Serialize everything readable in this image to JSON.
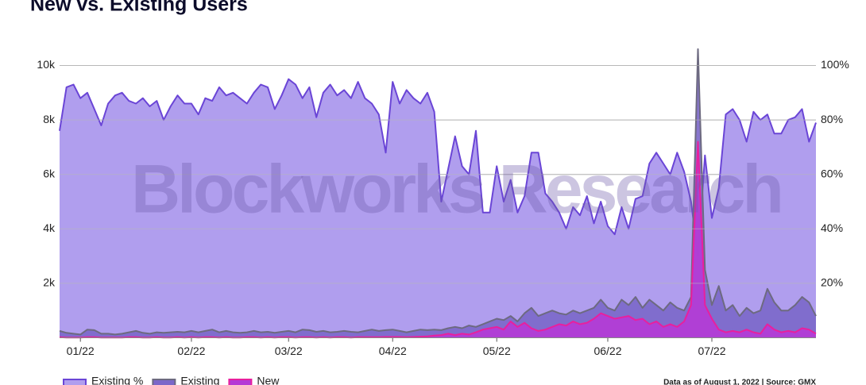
{
  "chart_data": {
    "type": "area",
    "title": "New vs. Existing Users",
    "watermark": "Blockworks Research",
    "source": "Data as of August 1, 2022 | Source: GMX",
    "categories": [
      null,
      null,
      null,
      "01/22",
      null,
      null,
      null,
      null,
      null,
      null,
      null,
      null,
      null,
      null,
      null,
      null,
      null,
      null,
      null,
      "02/22",
      null,
      null,
      null,
      null,
      null,
      null,
      null,
      null,
      null,
      null,
      null,
      null,
      null,
      "03/22",
      null,
      null,
      null,
      null,
      null,
      null,
      null,
      null,
      null,
      null,
      null,
      null,
      null,
      null,
      "04/22",
      null,
      null,
      null,
      null,
      null,
      null,
      null,
      null,
      null,
      null,
      null,
      null,
      null,
      null,
      "05/22",
      null,
      null,
      null,
      null,
      null,
      null,
      null,
      null,
      null,
      null,
      null,
      null,
      null,
      null,
      null,
      "06/22",
      null,
      null,
      null,
      null,
      null,
      null,
      null,
      null,
      null,
      null,
      null,
      null,
      null,
      null,
      "07/22",
      null,
      null,
      null,
      null,
      null,
      null,
      null,
      null,
      null,
      null,
      null,
      null,
      null,
      null,
      null
    ],
    "series": [
      {
        "name": "Existing %",
        "color": "#b09eee",
        "line_color": "#6a45d6",
        "axis": "y2",
        "values": [
          76,
          92,
          93,
          88,
          90,
          84,
          78,
          86,
          89,
          90,
          87,
          86,
          88,
          85,
          87,
          80,
          85,
          89,
          86,
          86,
          82,
          88,
          87,
          92,
          89,
          90,
          88,
          86,
          90,
          93,
          92,
          84,
          89,
          95,
          93,
          88,
          92,
          81,
          90,
          93,
          89,
          91,
          88,
          94,
          88,
          86,
          82,
          68,
          94,
          86,
          91,
          88,
          86,
          90,
          83,
          50,
          62,
          74,
          63,
          60,
          76,
          46,
          46,
          63,
          50,
          58,
          46,
          52,
          68,
          68,
          53,
          50,
          46,
          40,
          48,
          45,
          52,
          42,
          50,
          41,
          38,
          48,
          40,
          51,
          52,
          64,
          68,
          64,
          60,
          68,
          61,
          50,
          30,
          67,
          44,
          55,
          82,
          84,
          80,
          72,
          83,
          80,
          82,
          75,
          75,
          80,
          81,
          84,
          72,
          79
        ]
      },
      {
        "name": "Existing",
        "color": "#7b67c9",
        "line_color": "#6d6a80",
        "values": [
          250,
          180,
          150,
          120,
          300,
          280,
          150,
          150,
          120,
          150,
          200,
          250,
          180,
          150,
          200,
          180,
          200,
          220,
          200,
          250,
          200,
          250,
          300,
          200,
          250,
          200,
          180,
          200,
          250,
          200,
          220,
          180,
          220,
          250,
          200,
          300,
          280,
          220,
          250,
          200,
          220,
          250,
          220,
          200,
          250,
          300,
          250,
          280,
          300,
          250,
          200,
          250,
          300,
          280,
          300,
          280,
          350,
          400,
          350,
          450,
          400,
          500,
          600,
          700,
          650,
          800,
          600,
          900,
          1100,
          800,
          900,
          1000,
          900,
          850,
          1000,
          900,
          1000,
          1100,
          1400,
          1100,
          1000,
          1400,
          1200,
          1500,
          1100,
          1400,
          1200,
          1000,
          1300,
          1100,
          1000,
          1500,
          10600,
          2500,
          1200,
          1900,
          1000,
          1200,
          800,
          1100,
          900,
          1000,
          1800,
          1300,
          1000,
          1000,
          1200,
          1500,
          1300,
          800
        ]
      },
      {
        "name": "New",
        "color": "#b53ad6",
        "line_color": "#e8209e",
        "values": [
          20,
          10,
          10,
          10,
          20,
          20,
          10,
          10,
          10,
          10,
          20,
          20,
          10,
          10,
          20,
          10,
          10,
          20,
          10,
          20,
          10,
          20,
          20,
          10,
          20,
          10,
          10,
          20,
          20,
          10,
          20,
          10,
          20,
          20,
          10,
          20,
          20,
          10,
          20,
          10,
          20,
          20,
          10,
          20,
          20,
          20,
          20,
          30,
          30,
          30,
          20,
          30,
          40,
          50,
          80,
          100,
          150,
          100,
          150,
          120,
          200,
          300,
          350,
          400,
          300,
          600,
          400,
          550,
          350,
          250,
          300,
          400,
          500,
          450,
          600,
          500,
          550,
          700,
          900,
          800,
          700,
          750,
          800,
          650,
          700,
          500,
          600,
          400,
          500,
          400,
          600,
          1200,
          7200,
          1200,
          700,
          300,
          200,
          250,
          200,
          300,
          200,
          150,
          500,
          300,
          200,
          250,
          200,
          350,
          300,
          150
        ]
      }
    ],
    "ylim": [
      0,
      10700
    ],
    "yticks": [
      {
        "value": 2000,
        "label": "2k"
      },
      {
        "value": 4000,
        "label": "4k"
      },
      {
        "value": 6000,
        "label": "6k"
      },
      {
        "value": 8000,
        "label": "8k"
      },
      {
        "value": 10000,
        "label": "10k"
      }
    ],
    "y2lim": [
      0,
      107
    ],
    "y2ticks": [
      {
        "value": 20,
        "label": "20%"
      },
      {
        "value": 40,
        "label": "40%"
      },
      {
        "value": 60,
        "label": "60%"
      },
      {
        "value": 80,
        "label": "80%"
      },
      {
        "value": 100,
        "label": "100%"
      }
    ],
    "grid": true
  }
}
